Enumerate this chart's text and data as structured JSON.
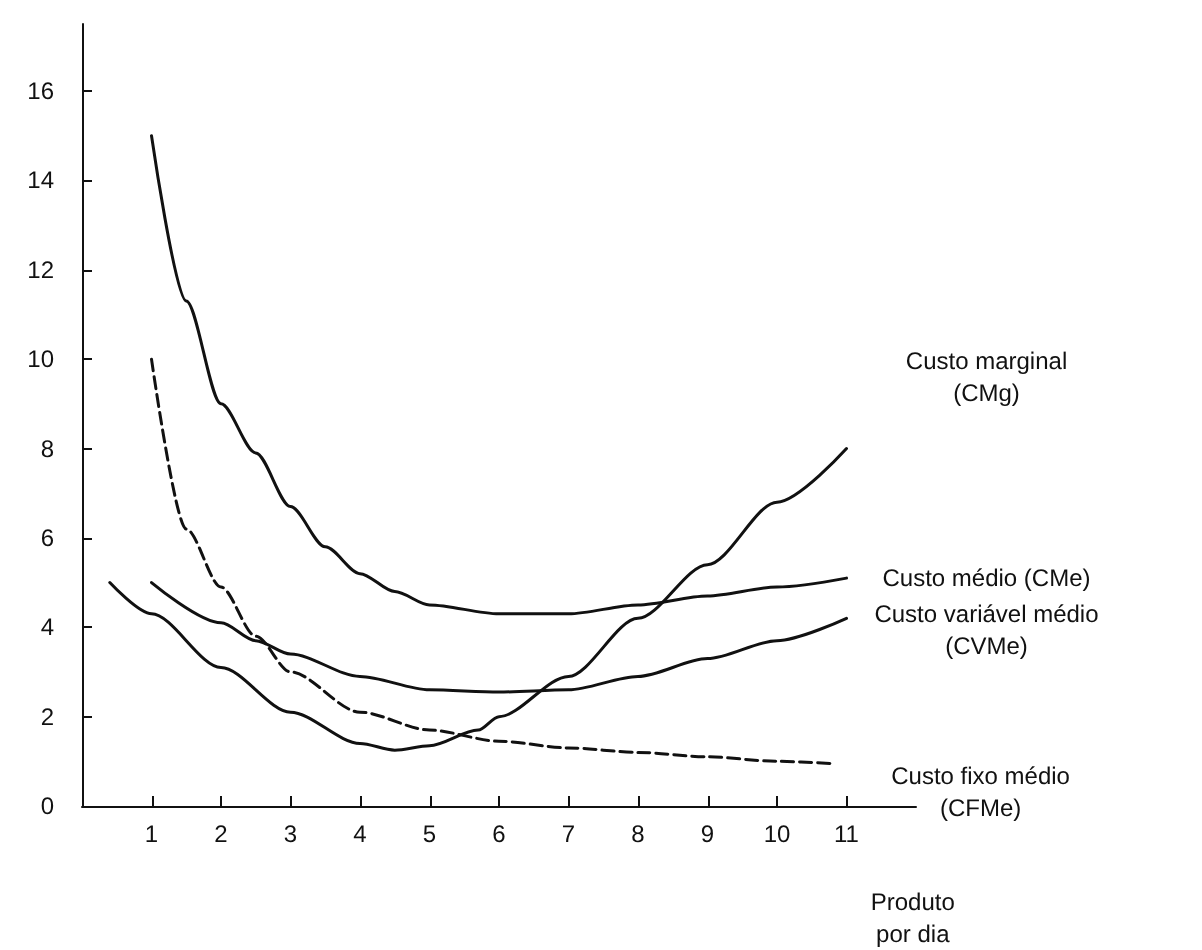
{
  "chart_data": {
    "type": "line",
    "xlabel": "Produto\npor dia",
    "xlim": [
      0,
      12
    ],
    "xticks": [
      1,
      2,
      3,
      4,
      5,
      6,
      7,
      8,
      9,
      10,
      11
    ],
    "ylim": [
      0,
      17.5
    ],
    "yticks": [
      0,
      2,
      4,
      6,
      8,
      10,
      12,
      14,
      16
    ],
    "grid": false,
    "legend": false,
    "marker": "none",
    "series": [
      {
        "name": "Custo médio (CMe)",
        "color": "#111111",
        "line_style": "solid",
        "x": [
          1,
          1.5,
          2,
          2.5,
          3,
          3.5,
          4,
          4.5,
          5,
          6,
          7,
          8,
          9,
          10,
          11
        ],
        "values": [
          15,
          11.3,
          9,
          7.9,
          6.7,
          5.8,
          5.2,
          4.8,
          4.5,
          4.3,
          4.3,
          4.5,
          4.7,
          4.9,
          5.1
        ]
      },
      {
        "name": "Custo variável médio\n(CVMe)",
        "color": "#111111",
        "line_style": "solid",
        "x": [
          1,
          2,
          2.5,
          3,
          4,
          5,
          6,
          7,
          8,
          9,
          10,
          11
        ],
        "values": [
          5,
          4.1,
          3.7,
          3.4,
          2.9,
          2.6,
          2.55,
          2.6,
          2.9,
          3.3,
          3.7,
          4.2
        ]
      },
      {
        "name": "Custo marginal\n(CMg)",
        "color": "#111111",
        "line_style": "solid",
        "x": [
          0.4,
          1,
          2,
          3,
          4,
          4.5,
          5,
          5.7,
          6,
          7,
          8,
          9,
          10,
          11
        ],
        "values": [
          5,
          4.3,
          3.1,
          2.1,
          1.4,
          1.25,
          1.35,
          1.7,
          2,
          2.9,
          4.2,
          5.4,
          6.8,
          8
        ]
      },
      {
        "name": "Custo fixo médio\n(CFMe)",
        "color": "#111111",
        "line_style": "dashed",
        "x": [
          1,
          1.5,
          2,
          2.5,
          3,
          4,
          5,
          6,
          7,
          8,
          9,
          10,
          10.8
        ],
        "values": [
          10,
          6.2,
          4.9,
          3.8,
          3,
          2.1,
          1.7,
          1.45,
          1.3,
          1.2,
          1.1,
          1,
          0.95
        ]
      }
    ]
  }
}
